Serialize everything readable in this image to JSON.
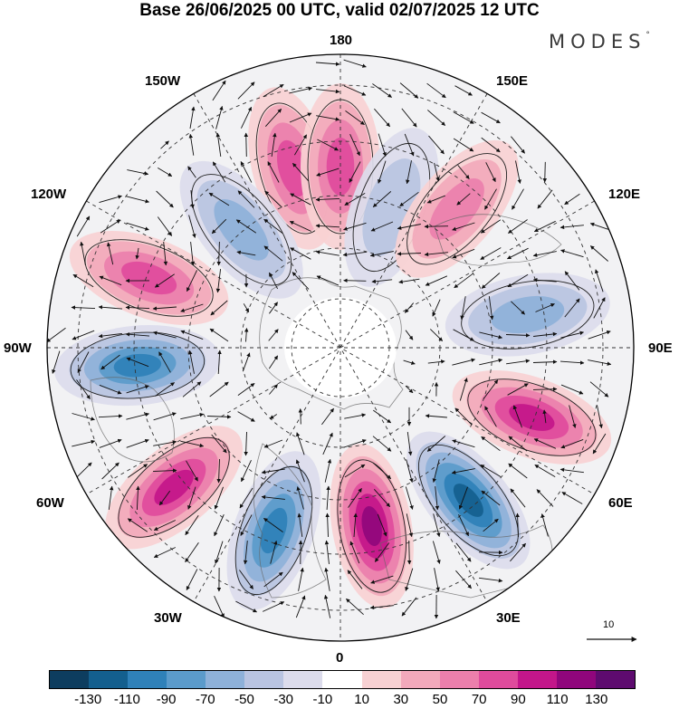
{
  "title": "Base 26/06/2025 00 UTC, valid 02/07/2025 12 UTC",
  "logo": {
    "text": "MODES",
    "mark": "°"
  },
  "map": {
    "projection": "north-polar-stereographic",
    "longitude_labels": {
      "top": "180",
      "top_left": "150W",
      "top_right": "150E",
      "upper_left": "120W",
      "upper_right": "120E",
      "left": "90W",
      "right": "90E",
      "lower_left": "60W",
      "lower_right": "60E",
      "bottom_left": "30W",
      "bottom_right": "30E",
      "bottom": "0"
    },
    "reference_vector": "10",
    "anomaly_centers": [
      {
        "sign": "positive",
        "intensity": 70,
        "lon": "165W"
      },
      {
        "sign": "negative",
        "intensity": 60,
        "lon": "140W"
      },
      {
        "sign": "positive",
        "intensity": 80,
        "lon": "180"
      },
      {
        "sign": "negative",
        "intensity": 40,
        "lon": "160E"
      },
      {
        "sign": "positive",
        "intensity": 50,
        "lon": "140E"
      },
      {
        "sign": "negative",
        "intensity": 60,
        "lon": "100E"
      },
      {
        "sign": "positive",
        "intensity": 90,
        "lon": "70E"
      },
      {
        "sign": "negative",
        "intensity": 110,
        "lon": "40E"
      },
      {
        "sign": "positive",
        "intensity": 120,
        "lon": "10E"
      },
      {
        "sign": "negative",
        "intensity": 100,
        "lon": "20W"
      },
      {
        "sign": "positive",
        "intensity": 100,
        "lon": "50W"
      },
      {
        "sign": "negative",
        "intensity": 100,
        "lon": "85W"
      },
      {
        "sign": "positive",
        "intensity": 80,
        "lon": "110W"
      }
    ]
  },
  "colorbar": {
    "ticks": [
      "-130",
      "-110",
      "-90",
      "-70",
      "-50",
      "-30",
      "-10",
      "10",
      "30",
      "50",
      "70",
      "90",
      "110",
      "130"
    ],
    "colors": [
      "#0d3d5f",
      "#135f8e",
      "#2f81b9",
      "#5b9bcb",
      "#8eb1d9",
      "#b9c4e1",
      "#dcdcec",
      "#ffffff",
      "#f8d1d3",
      "#f2a9bb",
      "#ec7fac",
      "#df4b9c",
      "#c3168a",
      "#90067c",
      "#5e0b6f"
    ]
  }
}
